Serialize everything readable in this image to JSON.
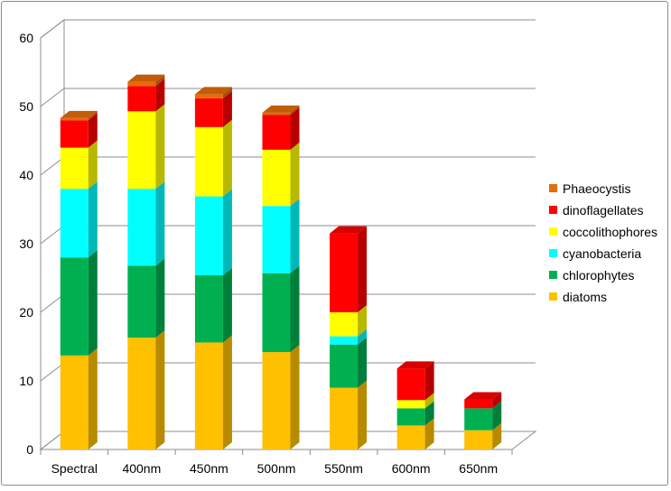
{
  "chart_data": {
    "type": "bar",
    "stacked": true,
    "style": "3d-column",
    "title": "",
    "xlabel": "",
    "ylabel": "",
    "ylim": [
      0,
      60
    ],
    "yticks": [
      0,
      10,
      20,
      30,
      40,
      50,
      60
    ],
    "grid": true,
    "legend_position": "right",
    "categories": [
      "Spectral",
      "400nm",
      "450nm",
      "500nm",
      "550nm",
      "600nm",
      "650nm"
    ],
    "series": [
      {
        "name": "diatoms",
        "color": "#ffc000",
        "values": [
          13.7,
          16.3,
          15.6,
          14.2,
          9.0,
          3.5,
          2.8
        ]
      },
      {
        "name": "chlorophytes",
        "color": "#00b050",
        "values": [
          14.3,
          10.5,
          9.8,
          11.5,
          6.3,
          2.5,
          3.2
        ]
      },
      {
        "name": "cyanobacteria",
        "color": "#00ffff",
        "values": [
          10.0,
          11.2,
          11.5,
          9.8,
          1.2,
          0.0,
          0.0
        ]
      },
      {
        "name": "coccolithophores",
        "color": "#ffff00",
        "values": [
          6.0,
          11.3,
          10.1,
          8.2,
          3.5,
          1.2,
          0.0
        ]
      },
      {
        "name": "dinoflagellates",
        "color": "#ff0000",
        "values": [
          4.0,
          3.7,
          4.2,
          5.1,
          11.5,
          4.6,
          1.3
        ]
      },
      {
        "name": "Phaeocystis",
        "color": "#e46c0a",
        "values": [
          0.3,
          0.6,
          0.6,
          0.3,
          0.0,
          0.0,
          0.0
        ]
      }
    ]
  }
}
